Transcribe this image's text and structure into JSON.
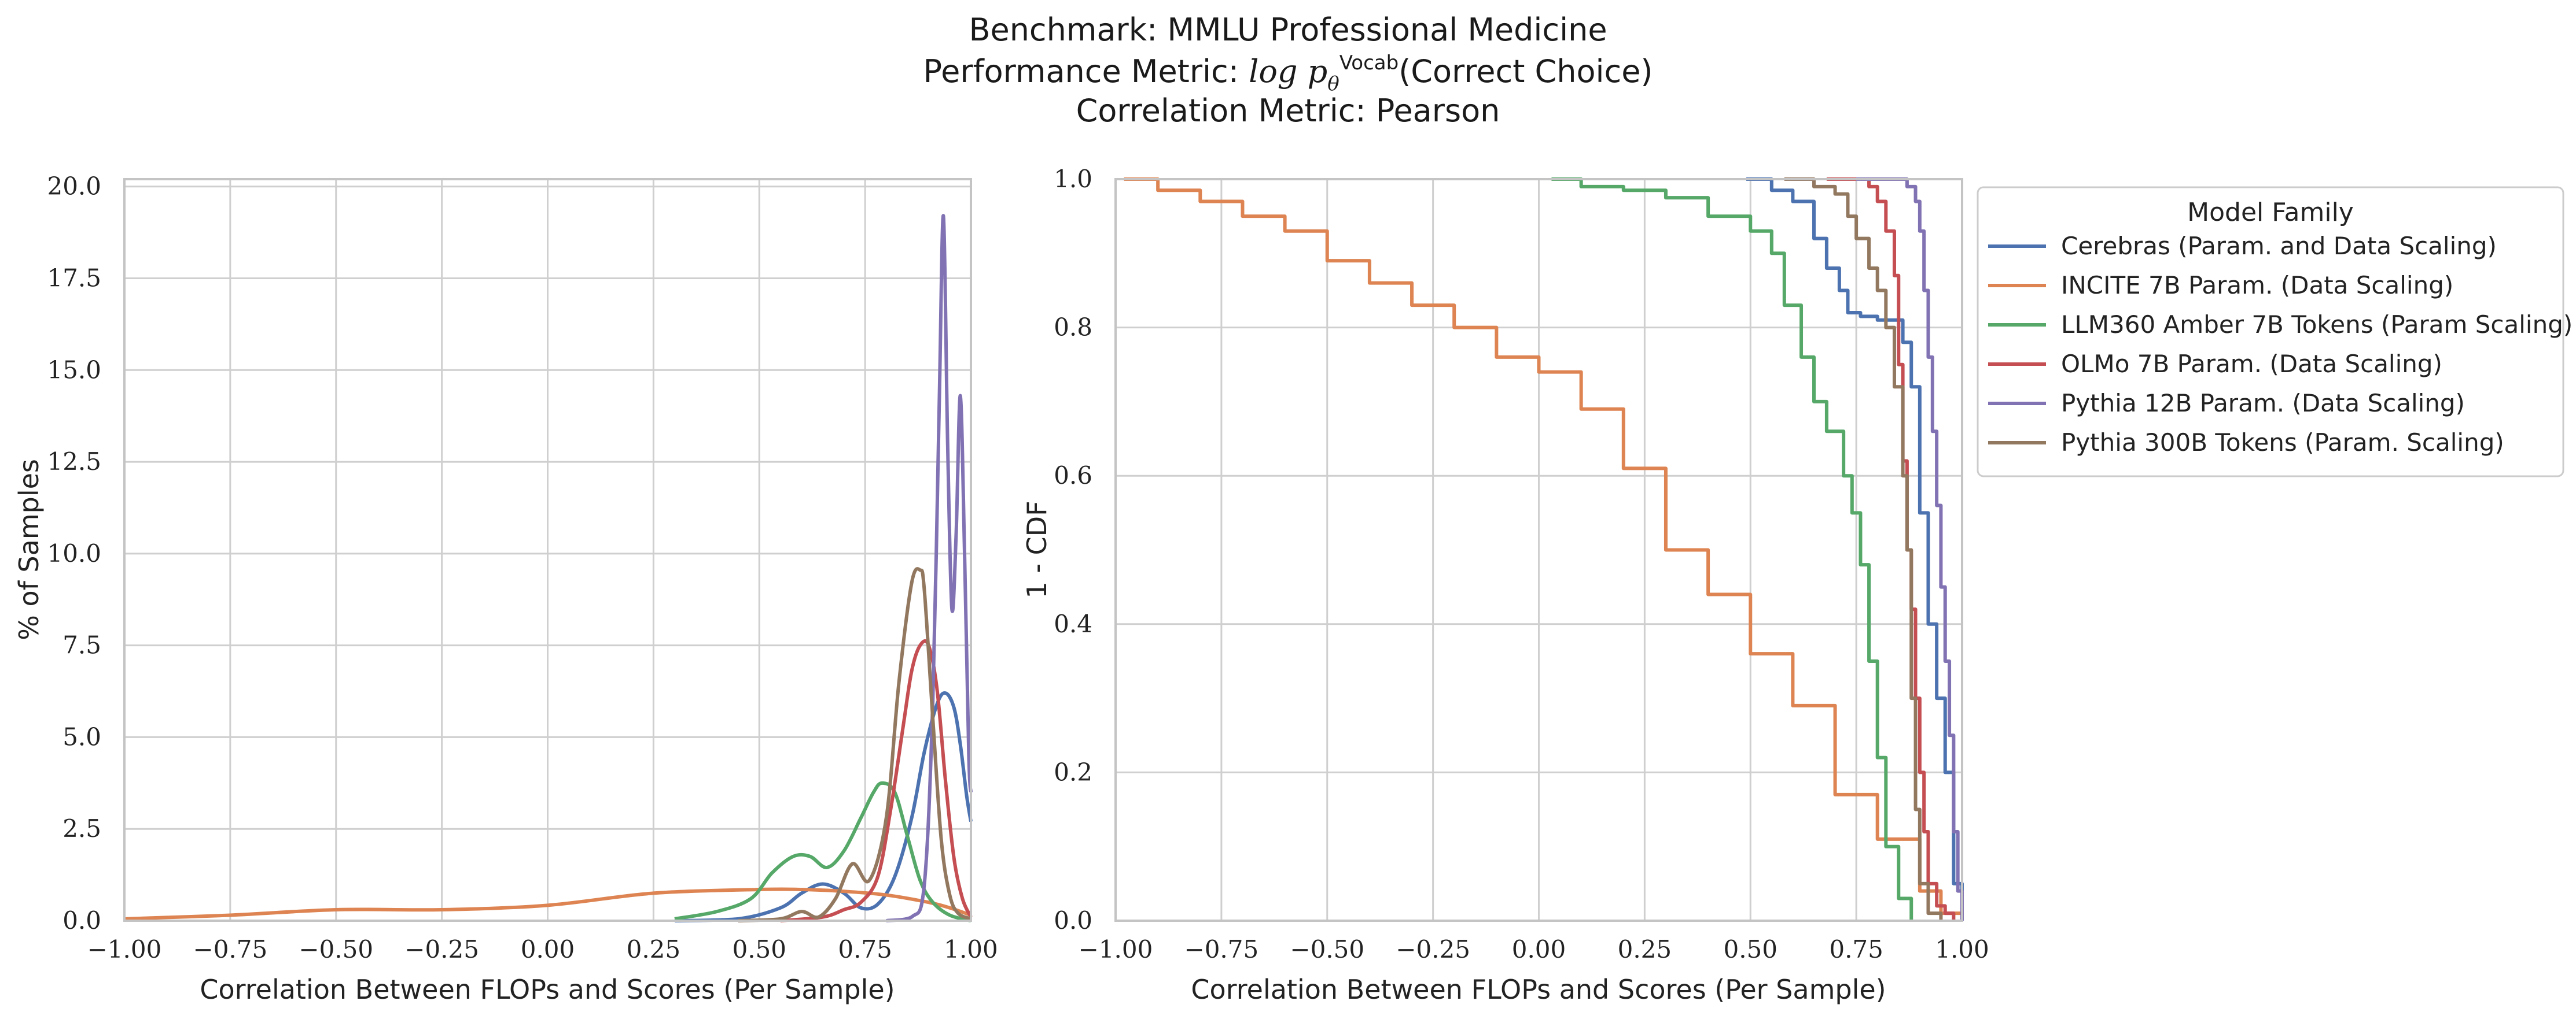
{
  "title": {
    "line1": "Benchmark: MMLU Professional Medicine",
    "line2_prefix": "Performance Metric: ",
    "line2_math": "log p",
    "line2_sup": "Vocab",
    "line2_sub": "θ",
    "line2_suffix": "(Correct Choice)",
    "line3": "Correlation Metric: Pearson"
  },
  "colors": {
    "Cerebras": "#4c72b0",
    "INCITE": "#dd8452",
    "LLM360": "#55a868",
    "OLMo": "#c44e52",
    "Pythia12B": "#8172b3",
    "Pythia300B": "#937860"
  },
  "chart_data": [
    {
      "type": "line",
      "xlabel": "Correlation Between FLOPs and Scores (Per Sample)",
      "ylabel": "% of Samples",
      "xlim": [
        -1.0,
        1.0
      ],
      "ylim": [
        0,
        20.2
      ],
      "xticks": [
        "−1.00",
        "−0.75",
        "−0.50",
        "−0.25",
        "0.00",
        "0.25",
        "0.50",
        "0.75",
        "1.00"
      ],
      "yticks": [
        "0.0",
        "2.5",
        "5.0",
        "7.5",
        "10.0",
        "12.5",
        "15.0",
        "17.5",
        "20.0"
      ],
      "grid": true,
      "series": [
        {
          "name": "Cerebras (Param. and Data Scaling)",
          "color_key": "Cerebras",
          "x": [
            0.3,
            0.45,
            0.55,
            0.6,
            0.65,
            0.7,
            0.74,
            0.78,
            0.82,
            0.86,
            0.89,
            0.92,
            0.94,
            0.96,
            0.975,
            0.99,
            1.0
          ],
          "y": [
            0.0,
            0.05,
            0.35,
            0.75,
            1.0,
            0.75,
            0.35,
            0.45,
            1.2,
            2.8,
            4.6,
            5.9,
            6.2,
            5.8,
            4.8,
            3.4,
            2.7
          ]
        },
        {
          "name": "INCITE 7B Param. (Data Scaling)",
          "color_key": "INCITE",
          "x": [
            -1.0,
            -0.75,
            -0.5,
            -0.25,
            0.0,
            0.25,
            0.5,
            0.6,
            0.7,
            0.8,
            0.9,
            0.95,
            1.0
          ],
          "y": [
            0.05,
            0.15,
            0.3,
            0.3,
            0.42,
            0.75,
            0.85,
            0.85,
            0.8,
            0.7,
            0.5,
            0.35,
            0.15
          ]
        },
        {
          "name": "LLM360 Amber 7B Tokens (Param Scaling)",
          "color_key": "LLM360",
          "x": [
            0.3,
            0.4,
            0.48,
            0.53,
            0.58,
            0.62,
            0.66,
            0.7,
            0.74,
            0.77,
            0.79,
            0.82,
            0.85,
            0.88,
            0.91,
            0.95,
            1.0
          ],
          "y": [
            0.05,
            0.25,
            0.6,
            1.3,
            1.75,
            1.75,
            1.45,
            1.9,
            2.8,
            3.5,
            3.75,
            3.5,
            2.3,
            1.1,
            0.5,
            0.15,
            0.0
          ]
        },
        {
          "name": "OLMo 7B Param. (Data Scaling)",
          "color_key": "OLMo",
          "x": [
            0.55,
            0.65,
            0.7,
            0.74,
            0.78,
            0.81,
            0.84,
            0.86,
            0.88,
            0.9,
            0.92,
            0.94,
            0.96,
            0.98,
            1.0
          ],
          "y": [
            0.0,
            0.1,
            0.3,
            0.5,
            1.2,
            3.0,
            5.3,
            6.8,
            7.5,
            7.5,
            6.3,
            3.8,
            1.7,
            0.6,
            0.1
          ]
        },
        {
          "name": "Pythia 12B Param. (Data Scaling)",
          "color_key": "Pythia12B",
          "x": [
            0.8,
            0.86,
            0.89,
            0.91,
            0.925,
            0.935,
            0.945,
            0.955,
            0.965,
            0.975,
            0.985,
            0.995,
            1.0
          ],
          "y": [
            0.0,
            0.1,
            1.0,
            6.0,
            14.0,
            19.2,
            13.0,
            8.5,
            10.5,
            14.3,
            10.0,
            4.5,
            3.5
          ]
        },
        {
          "name": "Pythia 300B Tokens (Param. Scaling)",
          "color_key": "Pythia300B",
          "x": [
            0.45,
            0.55,
            0.6,
            0.64,
            0.68,
            0.72,
            0.76,
            0.8,
            0.83,
            0.86,
            0.88,
            0.89,
            0.91,
            0.93,
            0.95,
            0.97,
            1.0
          ],
          "y": [
            0.0,
            0.05,
            0.25,
            0.1,
            0.6,
            1.55,
            1.1,
            2.8,
            6.5,
            9.2,
            9.55,
            9.0,
            5.5,
            2.2,
            0.7,
            0.2,
            0.05
          ]
        }
      ]
    },
    {
      "type": "line",
      "xlabel": "Correlation Between FLOPs and Scores (Per Sample)",
      "ylabel": "1 - CDF",
      "xlim": [
        -1.0,
        1.0
      ],
      "ylim": [
        0.0,
        1.0
      ],
      "xticks": [
        "−1.00",
        "−0.75",
        "−0.50",
        "−0.25",
        "0.00",
        "0.25",
        "0.50",
        "0.75",
        "1.00"
      ],
      "yticks": [
        "0.0",
        "0.2",
        "0.4",
        "0.6",
        "0.8",
        "1.0"
      ],
      "grid": true,
      "legend": {
        "title": "Model Family",
        "placement": "outside-upper-right",
        "entries": [
          {
            "label": "Cerebras (Param. and Data Scaling)",
            "color_key": "Cerebras"
          },
          {
            "label": "INCITE 7B Param. (Data Scaling)",
            "color_key": "INCITE"
          },
          {
            "label": "LLM360 Amber 7B Tokens (Param Scaling)",
            "color_key": "LLM360"
          },
          {
            "label": "OLMo 7B Param. (Data Scaling)",
            "color_key": "OLMo"
          },
          {
            "label": "Pythia 12B Param. (Data Scaling)",
            "color_key": "Pythia12B"
          },
          {
            "label": "Pythia 300B Tokens (Param. Scaling)",
            "color_key": "Pythia300B"
          }
        ]
      },
      "series": [
        {
          "name": "Cerebras (Param. and Data Scaling)",
          "color_key": "Cerebras",
          "x": [
            0.49,
            0.55,
            0.6,
            0.65,
            0.68,
            0.71,
            0.73,
            0.76,
            0.8,
            0.83,
            0.86,
            0.88,
            0.9,
            0.92,
            0.94,
            0.96,
            0.98,
            1.0
          ],
          "y": [
            1.0,
            0.985,
            0.97,
            0.92,
            0.88,
            0.85,
            0.82,
            0.815,
            0.81,
            0.81,
            0.78,
            0.72,
            0.55,
            0.4,
            0.3,
            0.2,
            0.05,
            0.0
          ]
        },
        {
          "name": "INCITE 7B Param. (Data Scaling)",
          "color_key": "INCITE",
          "x": [
            -0.98,
            -0.9,
            -0.8,
            -0.7,
            -0.6,
            -0.5,
            -0.4,
            -0.3,
            -0.2,
            -0.1,
            0.0,
            0.1,
            0.2,
            0.3,
            0.4,
            0.5,
            0.6,
            0.7,
            0.8,
            0.9,
            0.95,
            1.0
          ],
          "y": [
            1.0,
            0.985,
            0.97,
            0.95,
            0.93,
            0.89,
            0.86,
            0.83,
            0.8,
            0.76,
            0.74,
            0.69,
            0.61,
            0.5,
            0.44,
            0.36,
            0.29,
            0.17,
            0.11,
            0.04,
            0.01,
            0.0
          ]
        },
        {
          "name": "LLM360 Amber 7B Tokens (Param Scaling)",
          "color_key": "LLM360",
          "x": [
            0.03,
            0.1,
            0.2,
            0.3,
            0.4,
            0.5,
            0.55,
            0.58,
            0.62,
            0.65,
            0.68,
            0.72,
            0.74,
            0.76,
            0.78,
            0.8,
            0.82,
            0.85,
            0.88
          ],
          "y": [
            1.0,
            0.99,
            0.985,
            0.975,
            0.95,
            0.93,
            0.9,
            0.83,
            0.76,
            0.7,
            0.66,
            0.6,
            0.55,
            0.48,
            0.35,
            0.22,
            0.1,
            0.03,
            0.0
          ]
        },
        {
          "name": "OLMo 7B Param. (Data Scaling)",
          "color_key": "OLMo",
          "x": [
            0.68,
            0.75,
            0.78,
            0.8,
            0.82,
            0.84,
            0.85,
            0.86,
            0.87,
            0.88,
            0.89,
            0.9,
            0.91,
            0.92,
            0.94,
            0.96,
            0.98
          ],
          "y": [
            1.0,
            1.0,
            0.99,
            0.97,
            0.93,
            0.87,
            0.75,
            0.62,
            0.5,
            0.42,
            0.3,
            0.2,
            0.12,
            0.05,
            0.02,
            0.01,
            0.0
          ]
        },
        {
          "name": "Pythia 12B Param. (Data Scaling)",
          "color_key": "Pythia12B",
          "x": [
            0.75,
            0.8,
            0.84,
            0.87,
            0.89,
            0.9,
            0.91,
            0.92,
            0.93,
            0.94,
            0.95,
            0.96,
            0.97,
            0.98,
            0.99,
            1.0
          ],
          "y": [
            1.0,
            1.0,
            1.0,
            0.99,
            0.97,
            0.93,
            0.85,
            0.76,
            0.66,
            0.56,
            0.45,
            0.35,
            0.25,
            0.12,
            0.04,
            0.0
          ]
        },
        {
          "name": "Pythia 300B Tokens (Param. Scaling)",
          "color_key": "Pythia300B",
          "x": [
            0.58,
            0.65,
            0.7,
            0.73,
            0.75,
            0.78,
            0.8,
            0.82,
            0.84,
            0.86,
            0.87,
            0.88,
            0.89,
            0.9,
            0.92,
            0.95
          ],
          "y": [
            1.0,
            0.99,
            0.98,
            0.95,
            0.92,
            0.88,
            0.85,
            0.8,
            0.72,
            0.6,
            0.5,
            0.3,
            0.15,
            0.05,
            0.01,
            0.0
          ]
        }
      ]
    }
  ]
}
